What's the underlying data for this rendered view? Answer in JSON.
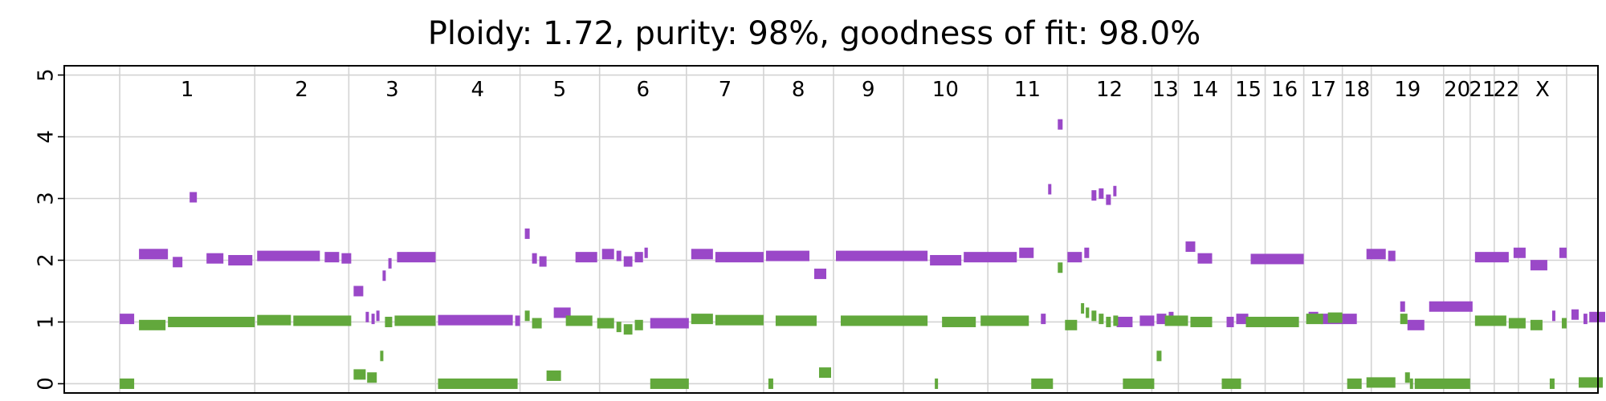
{
  "chart_data": {
    "type": "scatter",
    "title": "Ploidy: 1.72, purity: 98%, goodness of fit: 98.0%",
    "xlabel": "",
    "ylabel": "",
    "ylim": [
      -0.15,
      5.15
    ],
    "yticks": [
      "0",
      "1",
      "2",
      "3",
      "4",
      "5"
    ],
    "grid": true,
    "xlim": [
      0,
      3180
    ],
    "chromosome_boundaries": [
      115,
      395,
      590,
      770,
      945,
      1110,
      1290,
      1450,
      1595,
      1740,
      1915,
      2080,
      2255,
      2310,
      2420,
      2490,
      2570,
      2650,
      2710,
      2860,
      2915,
      2965,
      3015,
      3115
    ],
    "chromosome_labels": [
      {
        "label": "1",
        "x": 255
      },
      {
        "label": "2",
        "x": 492
      },
      {
        "label": "3",
        "x": 680
      },
      {
        "label": "4",
        "x": 857
      },
      {
        "label": "5",
        "x": 1027
      },
      {
        "label": "6",
        "x": 1200
      },
      {
        "label": "7",
        "x": 1370
      },
      {
        "label": "8",
        "x": 1522
      },
      {
        "label": "9",
        "x": 1667
      },
      {
        "label": "10",
        "x": 1827
      },
      {
        "label": "11",
        "x": 1997
      },
      {
        "label": "12",
        "x": 2167
      },
      {
        "label": "13",
        "x": 2283
      },
      {
        "label": "14",
        "x": 2365
      },
      {
        "label": "15",
        "x": 2455
      },
      {
        "label": "16",
        "x": 2530
      },
      {
        "label": "17",
        "x": 2610
      },
      {
        "label": "18",
        "x": 2680
      },
      {
        "label": "19",
        "x": 2785
      },
      {
        "label": "20",
        "x": 2888
      },
      {
        "label": "21",
        "x": 2940
      },
      {
        "label": "22",
        "x": 2990
      },
      {
        "label": "X",
        "x": 3065
      }
    ],
    "series": [
      {
        "color": "#9a48c8",
        "segments": [
          [
            115,
            145,
            1.05
          ],
          [
            155,
            215,
            2.1
          ],
          [
            225,
            245,
            1.97
          ],
          [
            260,
            275,
            3.02
          ],
          [
            295,
            330,
            2.03
          ],
          [
            340,
            390,
            2.0
          ],
          [
            400,
            530,
            2.07
          ],
          [
            540,
            570,
            2.05
          ],
          [
            575,
            595,
            2.03
          ],
          [
            600,
            620,
            1.5
          ],
          [
            625,
            630,
            1.08
          ],
          [
            637,
            642,
            1.05
          ],
          [
            647,
            652,
            1.1
          ],
          [
            660,
            665,
            1.75
          ],
          [
            672,
            677,
            1.95
          ],
          [
            690,
            770,
            2.05
          ],
          [
            775,
            930,
            1.03
          ],
          [
            935,
            945,
            1.02
          ],
          [
            955,
            965,
            2.43
          ],
          [
            970,
            980,
            2.03
          ],
          [
            985,
            1000,
            1.98
          ],
          [
            1015,
            1050,
            1.15
          ],
          [
            1060,
            1105,
            2.05
          ],
          [
            1115,
            1140,
            2.1
          ],
          [
            1145,
            1155,
            2.07
          ],
          [
            1160,
            1178,
            1.98
          ],
          [
            1183,
            1200,
            2.05
          ],
          [
            1203,
            1210,
            2.12
          ],
          [
            1215,
            1295,
            0.98
          ],
          [
            1300,
            1345,
            2.1
          ],
          [
            1350,
            1450,
            2.05
          ],
          [
            1455,
            1545,
            2.07
          ],
          [
            1555,
            1580,
            1.78
          ],
          [
            1600,
            1790,
            2.07
          ],
          [
            1795,
            1860,
            2.0
          ],
          [
            1865,
            1975,
            2.05
          ],
          [
            1980,
            2010,
            2.12
          ],
          [
            2025,
            2035,
            1.05
          ],
          [
            2040,
            2046,
            3.15
          ],
          [
            2060,
            2070,
            4.2
          ],
          [
            2080,
            2110,
            2.05
          ],
          [
            2115,
            2125,
            2.12
          ],
          [
            2130,
            2140,
            3.05
          ],
          [
            2145,
            2155,
            3.08
          ],
          [
            2160,
            2170,
            2.98
          ],
          [
            2175,
            2180,
            3.12
          ],
          [
            2182,
            2215,
            1.0
          ],
          [
            2230,
            2260,
            1.02
          ],
          [
            2265,
            2285,
            1.05
          ],
          [
            2290,
            2300,
            1.08
          ],
          [
            2325,
            2345,
            2.22
          ],
          [
            2350,
            2380,
            2.03
          ],
          [
            2410,
            2425,
            1.0
          ],
          [
            2430,
            2455,
            1.05
          ],
          [
            2460,
            2570,
            2.02
          ],
          [
            2580,
            2600,
            1.08
          ],
          [
            2605,
            2680,
            1.05
          ],
          [
            2700,
            2740,
            2.1
          ],
          [
            2745,
            2760,
            2.07
          ],
          [
            2770,
            2780,
            1.25
          ],
          [
            2785,
            2820,
            0.95
          ],
          [
            2830,
            2920,
            1.25
          ],
          [
            2925,
            2995,
            2.05
          ],
          [
            3005,
            3030,
            2.12
          ],
          [
            3040,
            3075,
            1.92
          ],
          [
            3085,
            3090,
            1.1
          ],
          [
            3100,
            3115,
            2.12
          ],
          [
            3125,
            3140,
            1.12
          ],
          [
            3150,
            3158,
            1.05
          ],
          [
            3162,
            3195,
            1.08
          ]
        ]
      },
      {
        "color": "#62a83c",
        "segments": [
          [
            115,
            145,
            0.0
          ],
          [
            155,
            210,
            0.95
          ],
          [
            215,
            395,
            1.0
          ],
          [
            400,
            470,
            1.03
          ],
          [
            475,
            595,
            1.02
          ],
          [
            600,
            625,
            0.15
          ],
          [
            628,
            648,
            0.1
          ],
          [
            655,
            660,
            0.45
          ],
          [
            665,
            680,
            1.0
          ],
          [
            685,
            770,
            1.02
          ],
          [
            775,
            940,
            0.0
          ],
          [
            955,
            965,
            1.1
          ],
          [
            970,
            990,
            0.98
          ],
          [
            1000,
            1030,
            0.13
          ],
          [
            1040,
            1095,
            1.02
          ],
          [
            1105,
            1140,
            0.98
          ],
          [
            1145,
            1155,
            0.92
          ],
          [
            1160,
            1178,
            0.88
          ],
          [
            1183,
            1200,
            0.95
          ],
          [
            1215,
            1295,
            0.0
          ],
          [
            1300,
            1345,
            1.05
          ],
          [
            1350,
            1450,
            1.03
          ],
          [
            1460,
            1470,
            0.0
          ],
          [
            1475,
            1560,
            1.02
          ],
          [
            1565,
            1590,
            0.18
          ],
          [
            1610,
            1790,
            1.02
          ],
          [
            1805,
            1810,
            0.0
          ],
          [
            1820,
            1890,
            1.0
          ],
          [
            1900,
            2000,
            1.02
          ],
          [
            2005,
            2050,
            0.0
          ],
          [
            2060,
            2070,
            1.88
          ],
          [
            2075,
            2100,
            0.95
          ],
          [
            2108,
            2112,
            1.22
          ],
          [
            2118,
            2125,
            1.15
          ],
          [
            2130,
            2140,
            1.1
          ],
          [
            2145,
            2155,
            1.05
          ],
          [
            2160,
            2170,
            1.0
          ],
          [
            2175,
            2185,
            1.02
          ],
          [
            2195,
            2260,
            0.0
          ],
          [
            2265,
            2275,
            0.45
          ],
          [
            2282,
            2330,
            1.02
          ],
          [
            2335,
            2380,
            1.0
          ],
          [
            2400,
            2440,
            0.0
          ],
          [
            2450,
            2560,
            1.0
          ],
          [
            2575,
            2610,
            1.05
          ],
          [
            2620,
            2650,
            1.07
          ],
          [
            2660,
            2690,
            0.0
          ],
          [
            2700,
            2760,
            0.02
          ],
          [
            2770,
            2785,
            1.05
          ],
          [
            2795,
            2790,
            0.0
          ],
          [
            2780,
            2790,
            0.1
          ],
          [
            2800,
            2915,
            0.0
          ],
          [
            2925,
            2990,
            1.02
          ],
          [
            2995,
            3030,
            0.98
          ],
          [
            3040,
            3065,
            0.95
          ],
          [
            3080,
            3090,
            0.0
          ],
          [
            3105,
            3115,
            0.98
          ],
          [
            3140,
            3190,
            0.02
          ]
        ]
      }
    ]
  }
}
